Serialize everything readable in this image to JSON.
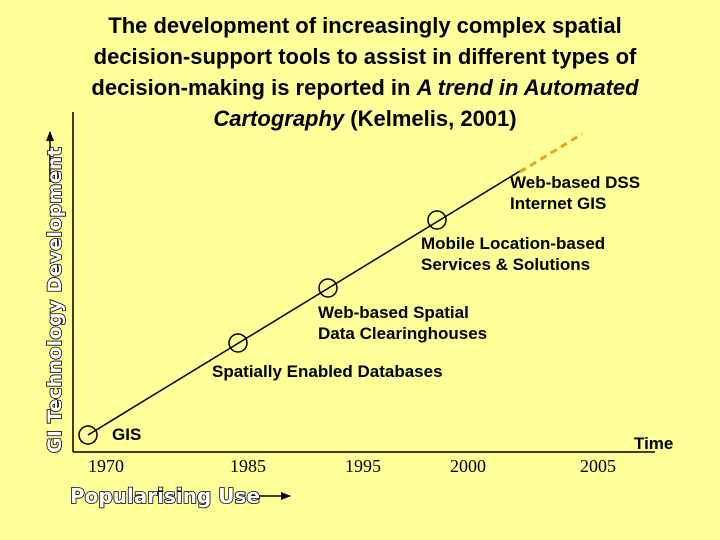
{
  "title": {
    "line1": "The development of increasingly complex spatial",
    "line2": "decision-support tools to assist in different types of",
    "line3_pre": "decision-making is reported in ",
    "line3_italic": "A trend in Automated",
    "line4_italic": "Cartography",
    "line4_post": " (Kelmelis, 2001)"
  },
  "axes": {
    "y_label": "GI Technology Development",
    "x_label": "Popularising Use",
    "time_label": "Time"
  },
  "years": [
    "1970",
    "1985",
    "1995",
    "2000",
    "2005"
  ],
  "milestones": {
    "gis": "GIS",
    "spatial_db": "Spatially Enabled Databases",
    "clearinghouse_1": "Web-based Spatial",
    "clearinghouse_2": "Data Clearinghouses",
    "mobile_1": "Mobile Location-based",
    "mobile_2": "Services & Solutions",
    "dss_1": "Web-based DSS",
    "dss_2": "Internet GIS"
  },
  "colors": {
    "background": "#ffff99",
    "future_trend": "#e8a317"
  }
}
